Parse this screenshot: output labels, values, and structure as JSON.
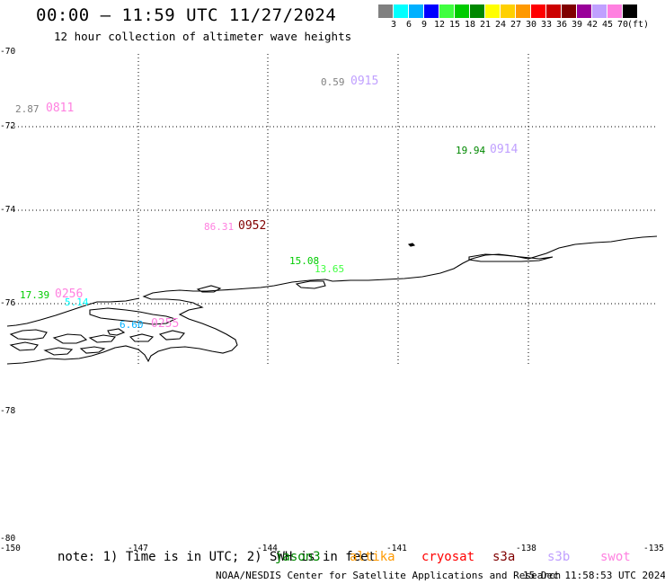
{
  "header": {
    "title": "00:00 – 11:59 UTC 11/27/2024",
    "subtitle": "12 hour collection of altimeter wave heights"
  },
  "legend": {
    "unit": "(ft)",
    "levels": [
      {
        "label": "3",
        "color": "#808080"
      },
      {
        "label": "6",
        "color": "#00ffff"
      },
      {
        "label": "9",
        "color": "#00b0ff"
      },
      {
        "label": "12",
        "color": "#0000ff"
      },
      {
        "label": "15",
        "color": "#40ff40"
      },
      {
        "label": "18",
        "color": "#00cc00"
      },
      {
        "label": "21",
        "color": "#008800"
      },
      {
        "label": "24",
        "color": "#ffff00"
      },
      {
        "label": "27",
        "color": "#ffd000"
      },
      {
        "label": "30",
        "color": "#ff9900"
      },
      {
        "label": "33",
        "color": "#ff0000"
      },
      {
        "label": "36",
        "color": "#cc0000"
      },
      {
        "label": "39",
        "color": "#800000"
      },
      {
        "label": "42",
        "color": "#990099"
      },
      {
        "label": "45",
        "color": "#c0a0ff"
      },
      {
        "label": "70",
        "color": "#ff80e0"
      },
      {
        "label": "",
        "color": "#000000"
      }
    ]
  },
  "axes": {
    "y_labels": [
      "-70",
      "-72",
      "-74",
      "-76",
      "-78",
      "-78",
      "-80"
    ],
    "x_labels": [
      "-150",
      "-147",
      "-144",
      "-141",
      "-138",
      "-135"
    ]
  },
  "observations": [
    {
      "value": "0.59",
      "value_color": "#808080",
      "time": "0915",
      "time_color": "#c0a0ff"
    },
    {
      "value": "2.87",
      "value_color": "#808080",
      "time": "0811",
      "time_color": "#ff80e0"
    },
    {
      "value": "19.94",
      "value_color": "#008800",
      "time": "0914",
      "time_color": "#c0a0ff"
    },
    {
      "value": "86.31",
      "value_color": "#ff80e0",
      "time": "0952",
      "time_color": "#800000"
    },
    {
      "value": "15.08",
      "value_color": "#00cc00",
      "time": "",
      "time_color": ""
    },
    {
      "value": "13.65",
      "value_color": "#40ff40",
      "time": "",
      "time_color": ""
    },
    {
      "value": "17.39",
      "value_color": "#00cc00",
      "time": "0256",
      "time_color": "#ff80e0"
    },
    {
      "value": "5.14",
      "value_color": "#00ffff",
      "time": "",
      "time_color": ""
    },
    {
      "value": "6.60",
      "value_color": "#00b0ff",
      "time": "0255",
      "time_color": "#ff80e0"
    }
  ],
  "note": {
    "text": "note: 1) Time is in UTC; 2) SWH is in feet",
    "satellites": [
      {
        "name": "jason3",
        "color": "#008800"
      },
      {
        "name": "altika",
        "color": "#ff9900"
      },
      {
        "name": "cryosat",
        "color": "#ff0000"
      },
      {
        "name": "s3a",
        "color": "#800000"
      },
      {
        "name": "s3b",
        "color": "#c0a0ff"
      },
      {
        "name": "swot",
        "color": "#ff80e0"
      }
    ]
  },
  "footer": {
    "credit": "NOAA/NESDIS Center for Satellite Applications and Research",
    "timestamp": "15 Dec 11:58:53 UTC 2024"
  }
}
